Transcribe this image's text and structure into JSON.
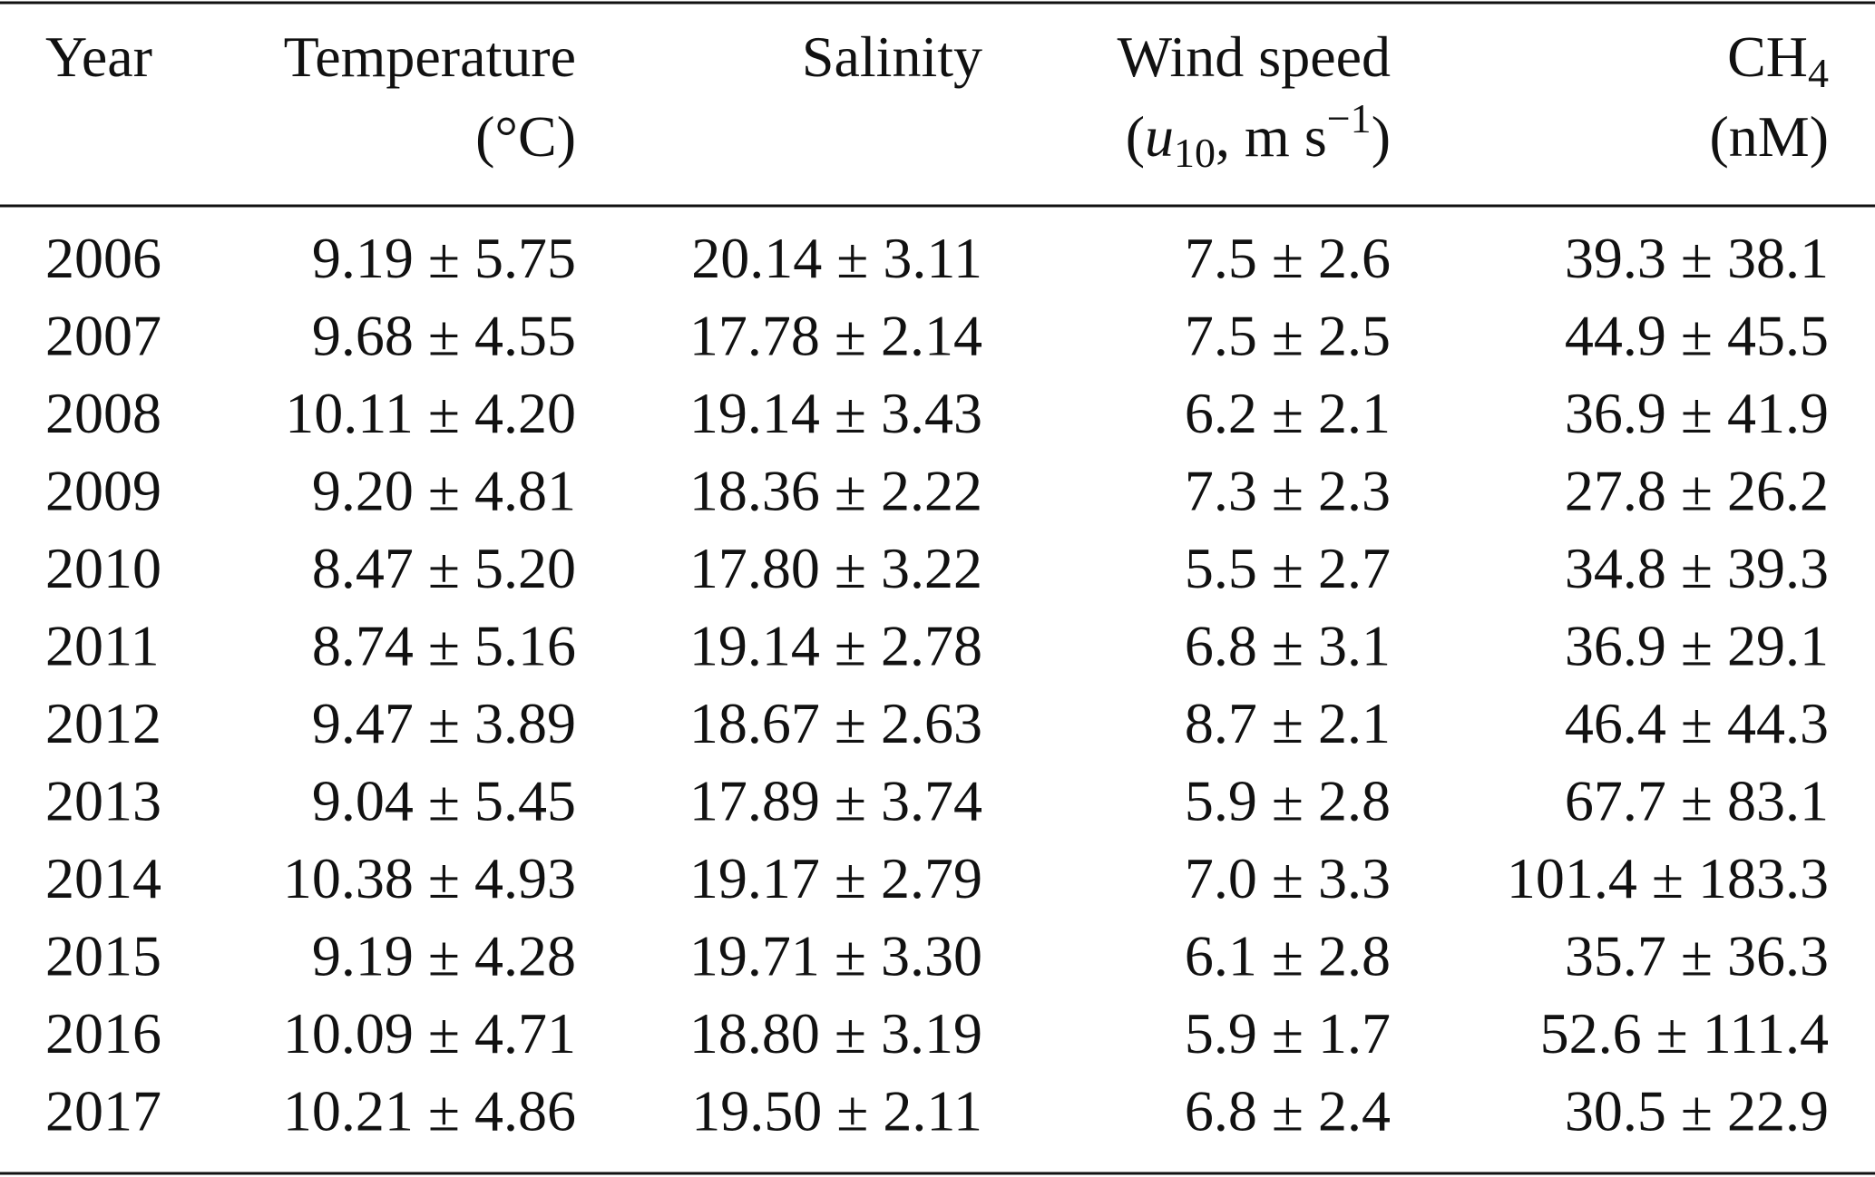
{
  "table": {
    "header": {
      "year": "Year",
      "temperature": {
        "label": "Temperature",
        "unit": "(°C)"
      },
      "salinity": {
        "label": "Salinity"
      },
      "wind": {
        "label": "Wind speed",
        "unit_parts": [
          "(",
          "u",
          "10",
          ", m s",
          "−1",
          ")"
        ]
      },
      "ch4": {
        "label_parts": [
          "CH",
          "4"
        ],
        "unit": "(nM)"
      }
    },
    "rows": [
      [
        "2006",
        "9.19 ± 5.75",
        "20.14 ± 3.11",
        "7.5 ± 2.6",
        "39.3 ± 38.1"
      ],
      [
        "2007",
        "9.68 ± 4.55",
        "17.78 ± 2.14",
        "7.5 ± 2.5",
        "44.9 ± 45.5"
      ],
      [
        "2008",
        "10.11 ± 4.20",
        "19.14 ± 3.43",
        "6.2 ± 2.1",
        "36.9 ± 41.9"
      ],
      [
        "2009",
        "9.20 ± 4.81",
        "18.36 ± 2.22",
        "7.3 ± 2.3",
        "27.8 ± 26.2"
      ],
      [
        "2010",
        "8.47 ± 5.20",
        "17.80 ± 3.22",
        "5.5 ± 2.7",
        "34.8 ± 39.3"
      ],
      [
        "2011",
        "8.74 ± 5.16",
        "19.14 ± 2.78",
        "6.8 ± 3.1",
        "36.9 ± 29.1"
      ],
      [
        "2012",
        "9.47 ± 3.89",
        "18.67 ± 2.63",
        "8.7 ± 2.1",
        "46.4 ± 44.3"
      ],
      [
        "2013",
        "9.04 ± 5.45",
        "17.89 ± 3.74",
        "5.9 ± 2.8",
        "67.7 ± 83.1"
      ],
      [
        "2014",
        "10.38 ± 4.93",
        "19.17 ± 2.79",
        "7.0 ± 3.3",
        "101.4 ± 183.3"
      ],
      [
        "2015",
        "9.19 ± 4.28",
        "19.71 ± 3.30",
        "6.1 ± 2.8",
        "35.7 ± 36.3"
      ],
      [
        "2016",
        "10.09 ± 4.71",
        "18.80 ± 3.19",
        "5.9 ± 1.7",
        "52.6 ± 111.4"
      ],
      [
        "2017",
        "10.21 ± 4.86",
        "19.50 ± 2.11",
        "6.8 ± 2.4",
        "30.5 ± 22.9"
      ]
    ]
  }
}
